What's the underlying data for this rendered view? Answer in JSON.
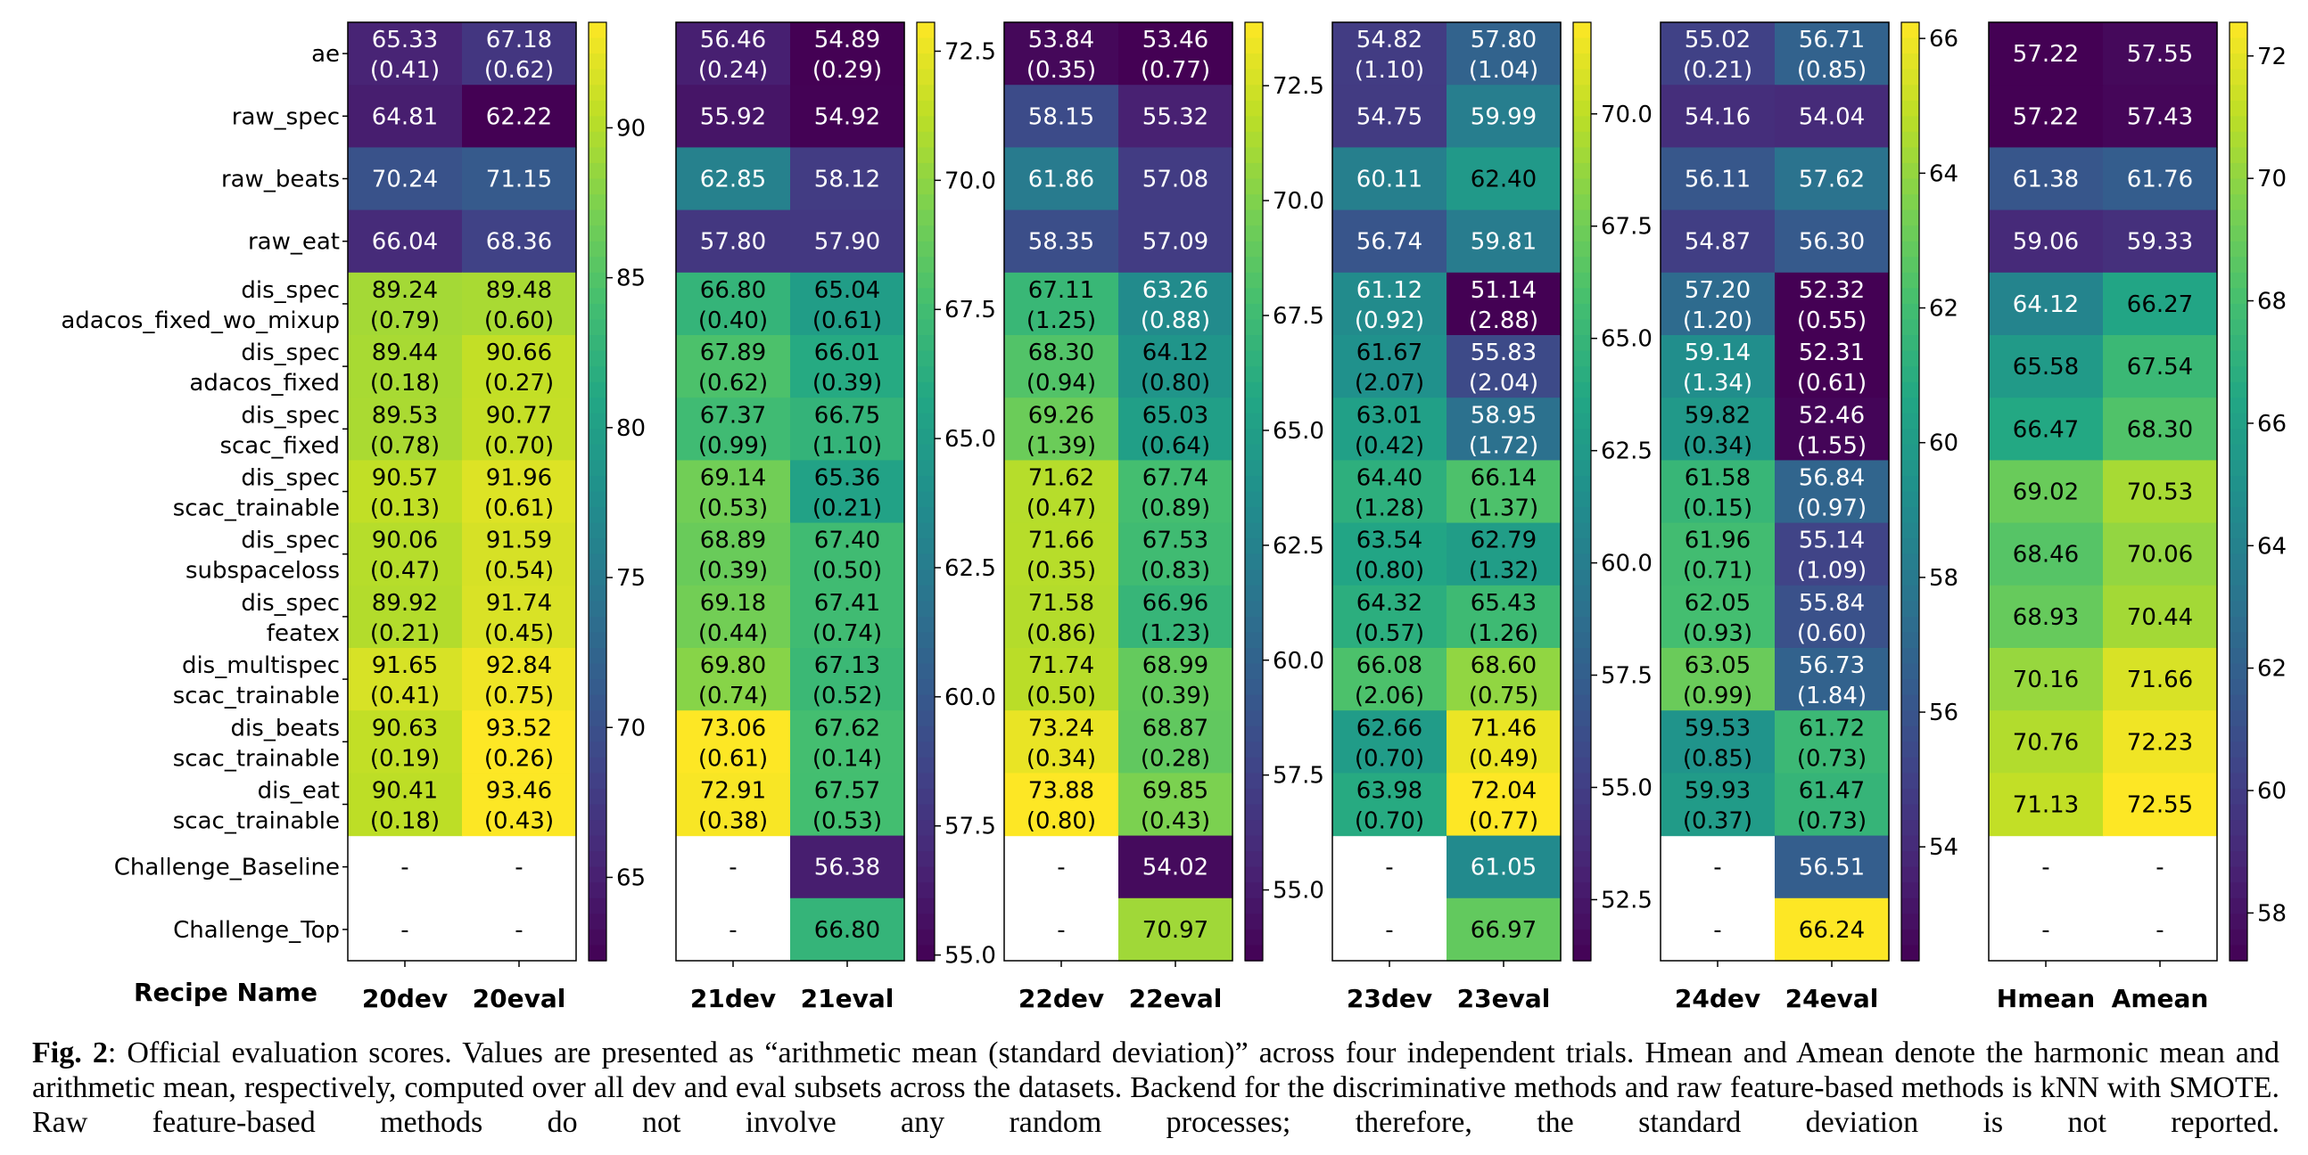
{
  "chart_data": {
    "type": "heatmap",
    "colormap": "viridis",
    "row_labels": [
      [
        "ae"
      ],
      [
        "raw_spec"
      ],
      [
        "raw_beats"
      ],
      [
        "raw_eat"
      ],
      [
        "dis_spec",
        "adacos_fixed_wo_mixup"
      ],
      [
        "dis_spec",
        "adacos_fixed"
      ],
      [
        "dis_spec",
        "scac_fixed"
      ],
      [
        "dis_spec",
        "scac_trainable"
      ],
      [
        "dis_spec",
        "subspaceloss"
      ],
      [
        "dis_spec",
        "featex"
      ],
      [
        "dis_multispec",
        "scac_trainable"
      ],
      [
        "dis_beats",
        "scac_trainable"
      ],
      [
        "dis_eat",
        "scac_trainable"
      ],
      [
        "Challenge_Baseline"
      ],
      [
        "Challenge_Top"
      ]
    ],
    "xlabel": "Recipe Name",
    "missing_label": "-",
    "panels": [
      {
        "columns": [
          "20dev",
          "20eval"
        ],
        "vmin": 62.22,
        "vmax": 93.52,
        "colorbar_ticks": [
          "65",
          "70",
          "75",
          "80",
          "85",
          "90"
        ],
        "values": [
          [
            [
              65.33,
              0.41
            ],
            [
              67.18,
              0.62
            ]
          ],
          [
            [
              64.81,
              null
            ],
            [
              62.22,
              null
            ]
          ],
          [
            [
              70.24,
              null
            ],
            [
              71.15,
              null
            ]
          ],
          [
            [
              66.04,
              null
            ],
            [
              68.36,
              null
            ]
          ],
          [
            [
              89.24,
              0.79
            ],
            [
              89.48,
              0.6
            ]
          ],
          [
            [
              89.44,
              0.18
            ],
            [
              90.66,
              0.27
            ]
          ],
          [
            [
              89.53,
              0.78
            ],
            [
              90.77,
              0.7
            ]
          ],
          [
            [
              90.57,
              0.13
            ],
            [
              91.96,
              0.61
            ]
          ],
          [
            [
              90.06,
              0.47
            ],
            [
              91.59,
              0.54
            ]
          ],
          [
            [
              89.92,
              0.21
            ],
            [
              91.74,
              0.45
            ]
          ],
          [
            [
              91.65,
              0.41
            ],
            [
              92.84,
              0.75
            ]
          ],
          [
            [
              90.63,
              0.19
            ],
            [
              93.52,
              0.26
            ]
          ],
          [
            [
              90.41,
              0.18
            ],
            [
              93.46,
              0.43
            ]
          ],
          [
            null,
            null
          ],
          [
            null,
            null
          ]
        ]
      },
      {
        "columns": [
          "21dev",
          "21eval"
        ],
        "vmin": 54.89,
        "vmax": 73.06,
        "colorbar_ticks": [
          "55.0",
          "57.5",
          "60.0",
          "62.5",
          "65.0",
          "67.5",
          "70.0",
          "72.5"
        ],
        "values": [
          [
            [
              56.46,
              0.24
            ],
            [
              54.89,
              0.29
            ]
          ],
          [
            [
              55.92,
              null
            ],
            [
              54.92,
              null
            ]
          ],
          [
            [
              62.85,
              null
            ],
            [
              58.12,
              null
            ]
          ],
          [
            [
              57.8,
              null
            ],
            [
              57.9,
              null
            ]
          ],
          [
            [
              66.8,
              0.4
            ],
            [
              65.04,
              0.61
            ]
          ],
          [
            [
              67.89,
              0.62
            ],
            [
              66.01,
              0.39
            ]
          ],
          [
            [
              67.37,
              0.99
            ],
            [
              66.75,
              1.1
            ]
          ],
          [
            [
              69.14,
              0.53
            ],
            [
              65.36,
              0.21
            ]
          ],
          [
            [
              68.89,
              0.39
            ],
            [
              67.4,
              0.5
            ]
          ],
          [
            [
              69.18,
              0.44
            ],
            [
              67.41,
              0.74
            ]
          ],
          [
            [
              69.8,
              0.74
            ],
            [
              67.13,
              0.52
            ]
          ],
          [
            [
              73.06,
              0.61
            ],
            [
              67.62,
              0.14
            ]
          ],
          [
            [
              72.91,
              0.38
            ],
            [
              67.57,
              0.53
            ]
          ],
          [
            null,
            [
              56.38,
              null
            ]
          ],
          [
            null,
            [
              66.8,
              null
            ]
          ]
        ]
      },
      {
        "columns": [
          "22dev",
          "22eval"
        ],
        "vmin": 53.46,
        "vmax": 73.88,
        "colorbar_ticks": [
          "55.0",
          "57.5",
          "60.0",
          "62.5",
          "65.0",
          "67.5",
          "70.0",
          "72.5"
        ],
        "values": [
          [
            [
              53.84,
              0.35
            ],
            [
              53.46,
              0.77
            ]
          ],
          [
            [
              58.15,
              null
            ],
            [
              55.32,
              null
            ]
          ],
          [
            [
              61.86,
              null
            ],
            [
              57.08,
              null
            ]
          ],
          [
            [
              58.35,
              null
            ],
            [
              57.09,
              null
            ]
          ],
          [
            [
              67.11,
              1.25
            ],
            [
              63.26,
              0.88
            ]
          ],
          [
            [
              68.3,
              0.94
            ],
            [
              64.12,
              0.8
            ]
          ],
          [
            [
              69.26,
              1.39
            ],
            [
              65.03,
              0.64
            ]
          ],
          [
            [
              71.62,
              0.47
            ],
            [
              67.74,
              0.89
            ]
          ],
          [
            [
              71.66,
              0.35
            ],
            [
              67.53,
              0.83
            ]
          ],
          [
            [
              71.58,
              0.86
            ],
            [
              66.96,
              1.23
            ]
          ],
          [
            [
              71.74,
              0.5
            ],
            [
              68.99,
              0.39
            ]
          ],
          [
            [
              73.24,
              0.34
            ],
            [
              68.87,
              0.28
            ]
          ],
          [
            [
              73.88,
              0.8
            ],
            [
              69.85,
              0.43
            ]
          ],
          [
            null,
            [
              54.02,
              null
            ]
          ],
          [
            null,
            [
              70.97,
              null
            ]
          ]
        ]
      },
      {
        "columns": [
          "23dev",
          "23eval"
        ],
        "vmin": 51.14,
        "vmax": 72.04,
        "colorbar_ticks": [
          "52.5",
          "55.0",
          "57.5",
          "60.0",
          "62.5",
          "65.0",
          "67.5",
          "70.0"
        ],
        "values": [
          [
            [
              54.82,
              1.1
            ],
            [
              57.8,
              1.04
            ]
          ],
          [
            [
              54.75,
              null
            ],
            [
              59.99,
              null
            ]
          ],
          [
            [
              60.11,
              null
            ],
            [
              62.4,
              null
            ]
          ],
          [
            [
              56.74,
              null
            ],
            [
              59.81,
              null
            ]
          ],
          [
            [
              61.12,
              0.92
            ],
            [
              51.14,
              2.88
            ]
          ],
          [
            [
              61.67,
              2.07
            ],
            [
              55.83,
              2.04
            ]
          ],
          [
            [
              63.01,
              0.42
            ],
            [
              58.95,
              1.72
            ]
          ],
          [
            [
              64.4,
              1.28
            ],
            [
              66.14,
              1.37
            ]
          ],
          [
            [
              63.54,
              0.8
            ],
            [
              62.79,
              1.32
            ]
          ],
          [
            [
              64.32,
              0.57
            ],
            [
              65.43,
              1.26
            ]
          ],
          [
            [
              66.08,
              2.06
            ],
            [
              68.6,
              0.75
            ]
          ],
          [
            [
              62.66,
              0.7
            ],
            [
              71.46,
              0.49
            ]
          ],
          [
            [
              63.98,
              0.7
            ],
            [
              72.04,
              0.77
            ]
          ],
          [
            null,
            [
              61.05,
              null
            ]
          ],
          [
            null,
            [
              66.97,
              null
            ]
          ]
        ]
      },
      {
        "columns": [
          "24dev",
          "24eval"
        ],
        "vmin": 52.31,
        "vmax": 66.24,
        "colorbar_ticks": [
          "54",
          "56",
          "58",
          "60",
          "62",
          "64",
          "66"
        ],
        "values": [
          [
            [
              55.02,
              0.21
            ],
            [
              56.71,
              0.85
            ]
          ],
          [
            [
              54.16,
              null
            ],
            [
              54.04,
              null
            ]
          ],
          [
            [
              56.11,
              null
            ],
            [
              57.62,
              null
            ]
          ],
          [
            [
              54.87,
              null
            ],
            [
              56.3,
              null
            ]
          ],
          [
            [
              57.2,
              1.2
            ],
            [
              52.32,
              0.55
            ]
          ],
          [
            [
              59.14,
              1.34
            ],
            [
              52.31,
              0.61
            ]
          ],
          [
            [
              59.82,
              0.34
            ],
            [
              52.46,
              1.55
            ]
          ],
          [
            [
              61.58,
              0.15
            ],
            [
              56.84,
              0.97
            ]
          ],
          [
            [
              61.96,
              0.71
            ],
            [
              55.14,
              1.09
            ]
          ],
          [
            [
              62.05,
              0.93
            ],
            [
              55.84,
              0.6
            ]
          ],
          [
            [
              63.05,
              0.99
            ],
            [
              56.73,
              1.84
            ]
          ],
          [
            [
              59.53,
              0.85
            ],
            [
              61.72,
              0.73
            ]
          ],
          [
            [
              59.93,
              0.37
            ],
            [
              61.47,
              0.73
            ]
          ],
          [
            null,
            [
              56.51,
              null
            ]
          ],
          [
            null,
            [
              66.24,
              null
            ]
          ]
        ]
      },
      {
        "columns": [
          "Hmean",
          "Amean"
        ],
        "vmin": 57.22,
        "vmax": 72.55,
        "colorbar_ticks": [
          "58",
          "60",
          "62",
          "64",
          "66",
          "68",
          "70",
          "72"
        ],
        "values": [
          [
            [
              57.22,
              null
            ],
            [
              57.55,
              null
            ]
          ],
          [
            [
              57.22,
              null
            ],
            [
              57.43,
              null
            ]
          ],
          [
            [
              61.38,
              null
            ],
            [
              61.76,
              null
            ]
          ],
          [
            [
              59.06,
              null
            ],
            [
              59.33,
              null
            ]
          ],
          [
            [
              64.12,
              null
            ],
            [
              66.27,
              null
            ]
          ],
          [
            [
              65.58,
              null
            ],
            [
              67.54,
              null
            ]
          ],
          [
            [
              66.47,
              null
            ],
            [
              68.3,
              null
            ]
          ],
          [
            [
              69.02,
              null
            ],
            [
              70.53,
              null
            ]
          ],
          [
            [
              68.46,
              null
            ],
            [
              70.06,
              null
            ]
          ],
          [
            [
              68.93,
              null
            ],
            [
              70.44,
              null
            ]
          ],
          [
            [
              70.16,
              null
            ],
            [
              71.66,
              null
            ]
          ],
          [
            [
              70.76,
              null
            ],
            [
              72.23,
              null
            ]
          ],
          [
            [
              71.13,
              null
            ],
            [
              72.55,
              null
            ]
          ],
          [
            null,
            null
          ],
          [
            null,
            null
          ]
        ]
      }
    ]
  },
  "caption": {
    "label": "Fig. 2",
    "text": ": Official evaluation scores. Values are presented as “arithmetic mean (standard deviation)” across four independent trials. Hmean and Amean denote the harmonic mean and arithmetic mean, respectively, computed over all dev and eval subsets across the datasets. Backend for the discriminative methods and raw feature-based methods is kNN with SMOTE. Raw feature-based methods do not involve any random processes; therefore, the standard deviation is not reported."
  }
}
